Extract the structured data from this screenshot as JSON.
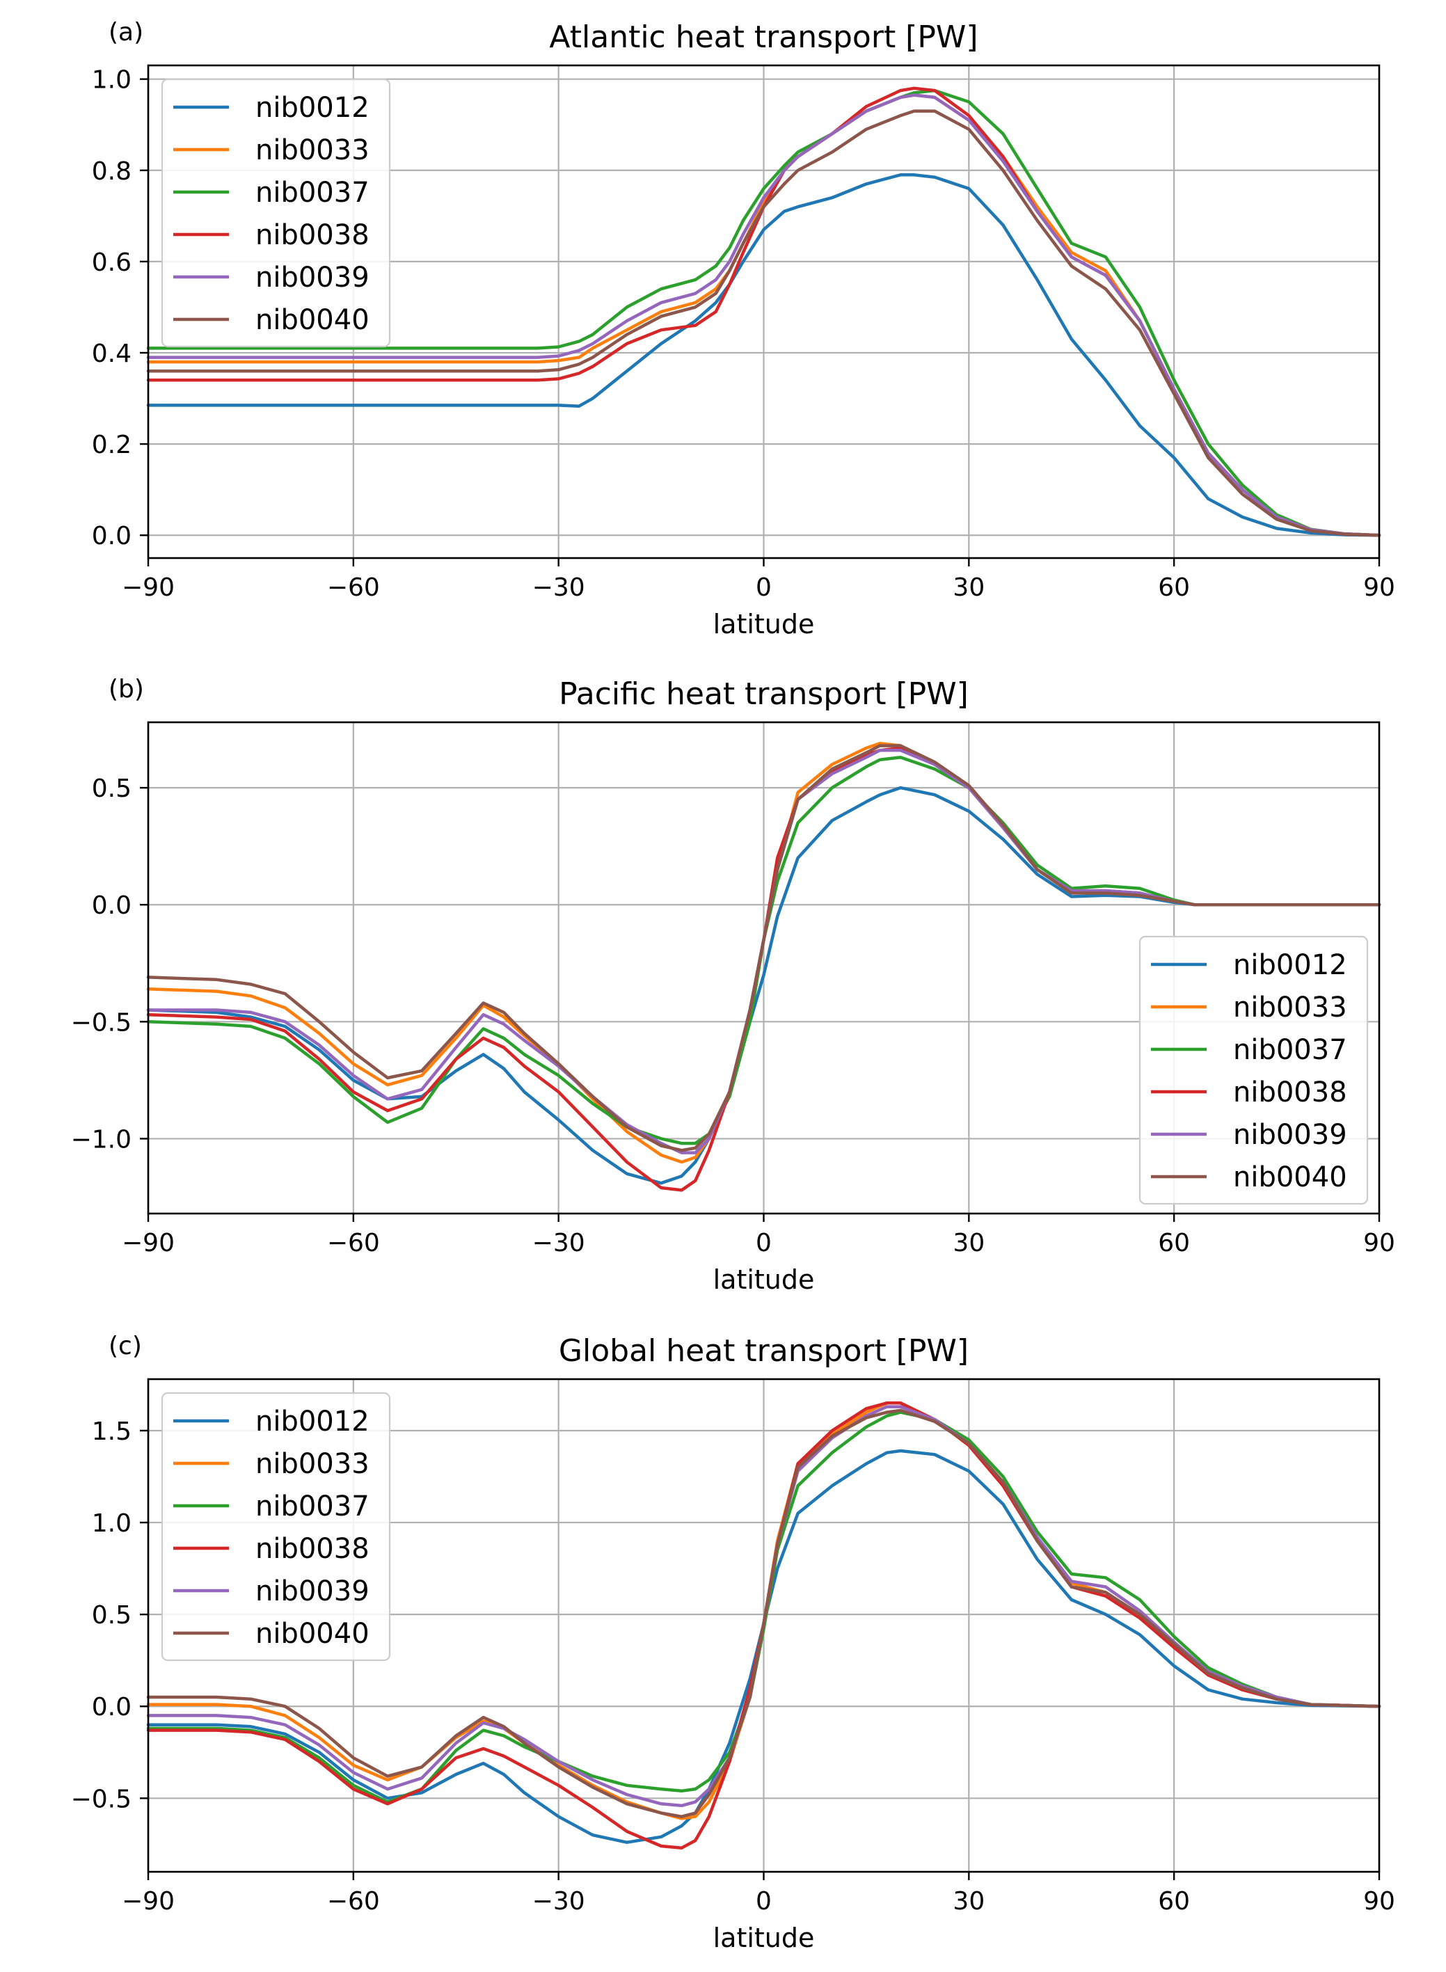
{
  "chart_data": [
    {
      "type": "line",
      "panel": "(a)",
      "title": "Atlantic heat transport [PW]",
      "xlabel": "latitude",
      "ylabel": "",
      "xlim": [
        -90,
        90
      ],
      "ylim": [
        -0.05,
        1.03
      ],
      "xticks": [
        -90,
        -60,
        -30,
        0,
        30,
        60,
        90
      ],
      "xtick_labels": [
        "−90",
        "−60",
        "−30",
        "0",
        "30",
        "60",
        "90"
      ],
      "yticks": [
        0.0,
        0.2,
        0.4,
        0.6,
        0.8,
        1.0
      ],
      "ytick_labels": [
        "0.0",
        "0.2",
        "0.4",
        "0.6",
        "0.8",
        "1.0"
      ],
      "grid": true,
      "legend": "top-left",
      "x": [
        -90,
        -60,
        -40,
        -33,
        -30,
        -27,
        -25,
        -20,
        -15,
        -10,
        -7,
        -5,
        -3,
        0,
        3,
        5,
        10,
        15,
        20,
        22,
        25,
        30,
        35,
        40,
        45,
        50,
        55,
        60,
        65,
        70,
        75,
        80,
        85,
        90
      ],
      "series": [
        {
          "name": "nib0012",
          "color": "#1f77b4",
          "values": [
            0.285,
            0.285,
            0.285,
            0.285,
            0.285,
            0.283,
            0.3,
            0.36,
            0.42,
            0.47,
            0.51,
            0.55,
            0.6,
            0.67,
            0.71,
            0.72,
            0.74,
            0.77,
            0.79,
            0.79,
            0.785,
            0.76,
            0.68,
            0.56,
            0.43,
            0.34,
            0.24,
            0.17,
            0.08,
            0.04,
            0.015,
            0.005,
            0.001,
            0.0
          ]
        },
        {
          "name": "nib0033",
          "color": "#ff7f0e",
          "values": [
            0.38,
            0.38,
            0.38,
            0.38,
            0.383,
            0.39,
            0.41,
            0.45,
            0.49,
            0.51,
            0.54,
            0.58,
            0.64,
            0.73,
            0.8,
            0.83,
            0.88,
            0.93,
            0.96,
            0.965,
            0.96,
            0.91,
            0.83,
            0.72,
            0.62,
            0.58,
            0.47,
            0.32,
            0.18,
            0.1,
            0.04,
            0.012,
            0.003,
            0.0
          ]
        },
        {
          "name": "nib0037",
          "color": "#2ca02c",
          "values": [
            0.41,
            0.41,
            0.41,
            0.41,
            0.413,
            0.425,
            0.44,
            0.5,
            0.54,
            0.56,
            0.59,
            0.63,
            0.69,
            0.76,
            0.81,
            0.84,
            0.88,
            0.93,
            0.96,
            0.97,
            0.975,
            0.95,
            0.88,
            0.76,
            0.64,
            0.61,
            0.5,
            0.34,
            0.2,
            0.11,
            0.045,
            0.013,
            0.003,
            0.0
          ]
        },
        {
          "name": "nib0038",
          "color": "#d62728",
          "values": [
            0.34,
            0.34,
            0.34,
            0.34,
            0.343,
            0.355,
            0.37,
            0.42,
            0.45,
            0.46,
            0.49,
            0.55,
            0.62,
            0.72,
            0.8,
            0.83,
            0.88,
            0.94,
            0.975,
            0.98,
            0.975,
            0.92,
            0.83,
            0.71,
            0.61,
            0.57,
            0.47,
            0.32,
            0.18,
            0.1,
            0.04,
            0.012,
            0.003,
            0.0
          ]
        },
        {
          "name": "nib0039",
          "color": "#9467bd",
          "values": [
            0.39,
            0.39,
            0.39,
            0.39,
            0.393,
            0.405,
            0.42,
            0.47,
            0.51,
            0.53,
            0.56,
            0.6,
            0.66,
            0.74,
            0.8,
            0.83,
            0.88,
            0.93,
            0.96,
            0.965,
            0.96,
            0.91,
            0.82,
            0.71,
            0.61,
            0.57,
            0.47,
            0.32,
            0.18,
            0.1,
            0.04,
            0.012,
            0.003,
            0.0
          ]
        },
        {
          "name": "nib0040",
          "color": "#8c564b",
          "values": [
            0.36,
            0.36,
            0.36,
            0.36,
            0.363,
            0.375,
            0.39,
            0.44,
            0.48,
            0.5,
            0.53,
            0.58,
            0.64,
            0.72,
            0.77,
            0.8,
            0.84,
            0.89,
            0.92,
            0.93,
            0.93,
            0.89,
            0.8,
            0.69,
            0.59,
            0.54,
            0.45,
            0.31,
            0.17,
            0.09,
            0.035,
            0.01,
            0.002,
            0.0
          ]
        }
      ]
    },
    {
      "type": "line",
      "panel": "(b)",
      "title": "Pacific heat transport [PW]",
      "xlabel": "latitude",
      "ylabel": "",
      "xlim": [
        -90,
        90
      ],
      "ylim": [
        -1.32,
        0.78
      ],
      "xticks": [
        -90,
        -60,
        -30,
        0,
        30,
        60,
        90
      ],
      "xtick_labels": [
        "−90",
        "−60",
        "−30",
        "0",
        "30",
        "60",
        "90"
      ],
      "yticks": [
        -1.0,
        -0.5,
        0.0,
        0.5
      ],
      "ytick_labels": [
        "−1.0",
        "−0.5",
        "0.0",
        "0.5"
      ],
      "grid": true,
      "legend": "lower-right",
      "x": [
        -90,
        -80,
        -75,
        -70,
        -65,
        -60,
        -55,
        -50,
        -45,
        -41,
        -38,
        -35,
        -30,
        -25,
        -20,
        -15,
        -12,
        -10,
        -8,
        -5,
        -2,
        0,
        2,
        5,
        10,
        15,
        17,
        20,
        25,
        30,
        35,
        40,
        45,
        50,
        55,
        60,
        63,
        65,
        70,
        80,
        90
      ],
      "series": [
        {
          "name": "nib0012",
          "color": "#1f77b4",
          "values": [
            -0.45,
            -0.46,
            -0.48,
            -0.52,
            -0.62,
            -0.75,
            -0.83,
            -0.82,
            -0.71,
            -0.64,
            -0.7,
            -0.8,
            -0.92,
            -1.05,
            -1.15,
            -1.19,
            -1.16,
            -1.1,
            -1.0,
            -0.8,
            -0.5,
            -0.3,
            -0.05,
            0.2,
            0.36,
            0.44,
            0.47,
            0.5,
            0.47,
            0.4,
            0.28,
            0.13,
            0.035,
            0.04,
            0.035,
            0.01,
            0.0,
            0.0,
            0.0,
            0.0,
            0.0
          ]
        },
        {
          "name": "nib0033",
          "color": "#ff7f0e",
          "values": [
            -0.36,
            -0.37,
            -0.39,
            -0.44,
            -0.55,
            -0.68,
            -0.77,
            -0.73,
            -0.57,
            -0.43,
            -0.48,
            -0.56,
            -0.68,
            -0.83,
            -0.97,
            -1.07,
            -1.1,
            -1.08,
            -1.0,
            -0.8,
            -0.45,
            -0.15,
            0.15,
            0.48,
            0.6,
            0.67,
            0.69,
            0.68,
            0.6,
            0.5,
            0.33,
            0.15,
            0.05,
            0.05,
            0.04,
            0.015,
            0.0,
            0.0,
            0.0,
            0.0,
            0.0
          ]
        },
        {
          "name": "nib0037",
          "color": "#2ca02c",
          "values": [
            -0.5,
            -0.51,
            -0.52,
            -0.57,
            -0.68,
            -0.82,
            -0.93,
            -0.87,
            -0.66,
            -0.53,
            -0.57,
            -0.64,
            -0.73,
            -0.85,
            -0.95,
            -1.0,
            -1.02,
            -1.02,
            -0.98,
            -0.82,
            -0.5,
            -0.15,
            0.1,
            0.35,
            0.5,
            0.59,
            0.62,
            0.63,
            0.58,
            0.5,
            0.35,
            0.17,
            0.07,
            0.08,
            0.07,
            0.02,
            0.0,
            0.0,
            0.0,
            0.0,
            0.0
          ]
        },
        {
          "name": "nib0038",
          "color": "#d62728",
          "values": [
            -0.47,
            -0.48,
            -0.49,
            -0.54,
            -0.66,
            -0.8,
            -0.88,
            -0.83,
            -0.66,
            -0.57,
            -0.61,
            -0.69,
            -0.8,
            -0.95,
            -1.1,
            -1.21,
            -1.22,
            -1.18,
            -1.05,
            -0.8,
            -0.45,
            -0.15,
            0.2,
            0.45,
            0.57,
            0.64,
            0.66,
            0.67,
            0.6,
            0.5,
            0.33,
            0.15,
            0.06,
            0.06,
            0.05,
            0.015,
            0.0,
            0.0,
            0.0,
            0.0,
            0.0
          ]
        },
        {
          "name": "nib0039",
          "color": "#9467bd",
          "values": [
            -0.45,
            -0.45,
            -0.46,
            -0.5,
            -0.6,
            -0.73,
            -0.83,
            -0.79,
            -0.61,
            -0.47,
            -0.51,
            -0.58,
            -0.69,
            -0.82,
            -0.94,
            -1.02,
            -1.06,
            -1.06,
            -1.0,
            -0.8,
            -0.45,
            -0.15,
            0.15,
            0.45,
            0.56,
            0.63,
            0.66,
            0.66,
            0.6,
            0.5,
            0.33,
            0.15,
            0.06,
            0.06,
            0.05,
            0.015,
            0.0,
            0.0,
            0.0,
            0.0,
            0.0
          ]
        },
        {
          "name": "nib0040",
          "color": "#8c564b",
          "values": [
            -0.31,
            -0.32,
            -0.34,
            -0.38,
            -0.5,
            -0.63,
            -0.74,
            -0.71,
            -0.55,
            -0.42,
            -0.46,
            -0.55,
            -0.68,
            -0.82,
            -0.95,
            -1.03,
            -1.05,
            -1.04,
            -0.98,
            -0.8,
            -0.45,
            -0.15,
            0.15,
            0.45,
            0.58,
            0.65,
            0.68,
            0.68,
            0.61,
            0.51,
            0.34,
            0.15,
            0.05,
            0.05,
            0.04,
            0.015,
            0.0,
            0.0,
            0.0,
            0.0,
            0.0
          ]
        }
      ]
    },
    {
      "type": "line",
      "panel": "(c)",
      "title": "Global heat transport [PW]",
      "xlabel": "latitude",
      "ylabel": "",
      "xlim": [
        -90,
        90
      ],
      "ylim": [
        -0.9,
        1.78
      ],
      "xticks": [
        -90,
        -60,
        -30,
        0,
        30,
        60,
        90
      ],
      "xtick_labels": [
        "−90",
        "−60",
        "−30",
        "0",
        "30",
        "60",
        "90"
      ],
      "yticks": [
        -0.5,
        0.0,
        0.5,
        1.0,
        1.5
      ],
      "ytick_labels": [
        "−0.5",
        "0.0",
        "0.5",
        "1.0",
        "1.5"
      ],
      "grid": true,
      "legend": "top-left",
      "x": [
        -90,
        -80,
        -75,
        -70,
        -65,
        -60,
        -55,
        -50,
        -45,
        -41,
        -38,
        -35,
        -30,
        -25,
        -20,
        -15,
        -12,
        -10,
        -8,
        -5,
        -2,
        0,
        2,
        5,
        10,
        15,
        18,
        20,
        25,
        30,
        35,
        40,
        45,
        50,
        55,
        60,
        65,
        70,
        75,
        80,
        90
      ],
      "series": [
        {
          "name": "nib0012",
          "color": "#1f77b4",
          "values": [
            -0.1,
            -0.1,
            -0.11,
            -0.15,
            -0.25,
            -0.4,
            -0.5,
            -0.47,
            -0.37,
            -0.31,
            -0.37,
            -0.47,
            -0.6,
            -0.7,
            -0.74,
            -0.71,
            -0.65,
            -0.58,
            -0.45,
            -0.2,
            0.15,
            0.45,
            0.75,
            1.05,
            1.2,
            1.32,
            1.38,
            1.39,
            1.37,
            1.28,
            1.1,
            0.8,
            0.58,
            0.5,
            0.39,
            0.22,
            0.09,
            0.04,
            0.02,
            0.005,
            0.0
          ]
        },
        {
          "name": "nib0033",
          "color": "#ff7f0e",
          "values": [
            0.01,
            0.01,
            0.0,
            -0.05,
            -0.17,
            -0.32,
            -0.4,
            -0.33,
            -0.17,
            -0.08,
            -0.12,
            -0.2,
            -0.32,
            -0.43,
            -0.52,
            -0.58,
            -0.61,
            -0.6,
            -0.52,
            -0.3,
            0.05,
            0.45,
            0.9,
            1.32,
            1.48,
            1.6,
            1.65,
            1.65,
            1.56,
            1.42,
            1.2,
            0.9,
            0.67,
            0.62,
            0.5,
            0.33,
            0.18,
            0.1,
            0.04,
            0.01,
            0.0
          ]
        },
        {
          "name": "nib0037",
          "color": "#2ca02c",
          "values": [
            -0.12,
            -0.12,
            -0.13,
            -0.17,
            -0.28,
            -0.43,
            -0.52,
            -0.45,
            -0.24,
            -0.13,
            -0.16,
            -0.22,
            -0.3,
            -0.38,
            -0.43,
            -0.45,
            -0.46,
            -0.45,
            -0.4,
            -0.25,
            0.05,
            0.42,
            0.85,
            1.2,
            1.38,
            1.52,
            1.58,
            1.6,
            1.56,
            1.45,
            1.25,
            0.95,
            0.72,
            0.7,
            0.58,
            0.38,
            0.21,
            0.12,
            0.05,
            0.01,
            0.0
          ]
        },
        {
          "name": "nib0038",
          "color": "#d62728",
          "values": [
            -0.13,
            -0.13,
            -0.14,
            -0.18,
            -0.3,
            -0.45,
            -0.53,
            -0.45,
            -0.28,
            -0.23,
            -0.27,
            -0.33,
            -0.43,
            -0.55,
            -0.68,
            -0.76,
            -0.77,
            -0.73,
            -0.6,
            -0.3,
            0.1,
            0.45,
            0.88,
            1.32,
            1.5,
            1.62,
            1.65,
            1.65,
            1.56,
            1.42,
            1.2,
            0.9,
            0.65,
            0.6,
            0.48,
            0.32,
            0.17,
            0.09,
            0.04,
            0.01,
            0.0
          ]
        },
        {
          "name": "nib0039",
          "color": "#9467bd",
          "values": [
            -0.05,
            -0.05,
            -0.06,
            -0.1,
            -0.21,
            -0.36,
            -0.45,
            -0.39,
            -0.2,
            -0.09,
            -0.12,
            -0.18,
            -0.3,
            -0.4,
            -0.48,
            -0.53,
            -0.54,
            -0.52,
            -0.45,
            -0.28,
            0.05,
            0.45,
            0.88,
            1.28,
            1.46,
            1.58,
            1.63,
            1.63,
            1.56,
            1.43,
            1.22,
            0.92,
            0.68,
            0.65,
            0.52,
            0.35,
            0.19,
            0.11,
            0.05,
            0.01,
            0.0
          ]
        },
        {
          "name": "nib0040",
          "color": "#8c564b",
          "values": [
            0.05,
            0.05,
            0.04,
            0.0,
            -0.12,
            -0.28,
            -0.38,
            -0.33,
            -0.16,
            -0.06,
            -0.11,
            -0.2,
            -0.33,
            -0.44,
            -0.53,
            -0.58,
            -0.6,
            -0.58,
            -0.48,
            -0.28,
            0.05,
            0.45,
            0.88,
            1.3,
            1.47,
            1.57,
            1.6,
            1.61,
            1.55,
            1.43,
            1.22,
            0.9,
            0.65,
            0.62,
            0.5,
            0.34,
            0.18,
            0.1,
            0.04,
            0.01,
            0.0
          ]
        }
      ]
    }
  ]
}
